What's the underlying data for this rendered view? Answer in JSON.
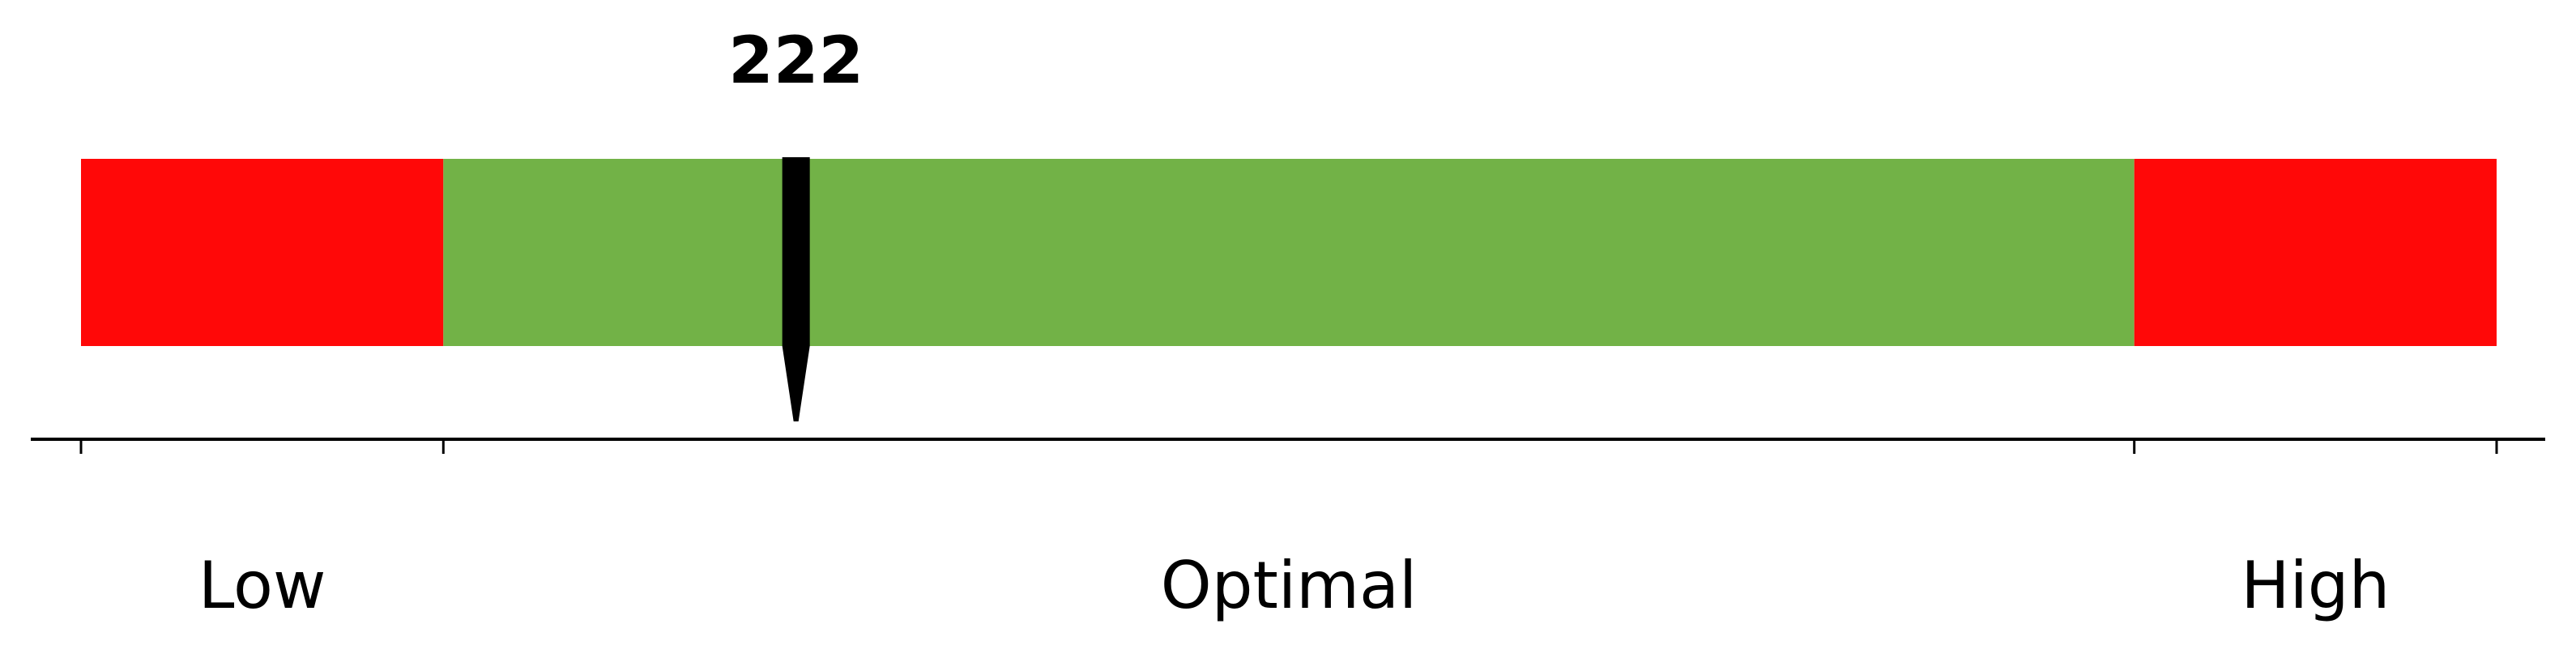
{
  "chart_data": {
    "type": "bar",
    "orientation": "horizontal",
    "value": 222,
    "value_label": "222",
    "bands": [
      {
        "name": "low",
        "label": "Low",
        "from": 0,
        "to": 15,
        "color": "#ff0808"
      },
      {
        "name": "optimal",
        "label": "Optimal",
        "from": 15,
        "to": 85,
        "color": "#72b247"
      },
      {
        "name": "high",
        "label": "High",
        "from": 85,
        "to": 100,
        "color": "#ff0808"
      }
    ],
    "tick_values": [
      0,
      15,
      85,
      100
    ],
    "marker_position": 29.6,
    "marker_color": "#000000",
    "axis_color": "#000000"
  }
}
